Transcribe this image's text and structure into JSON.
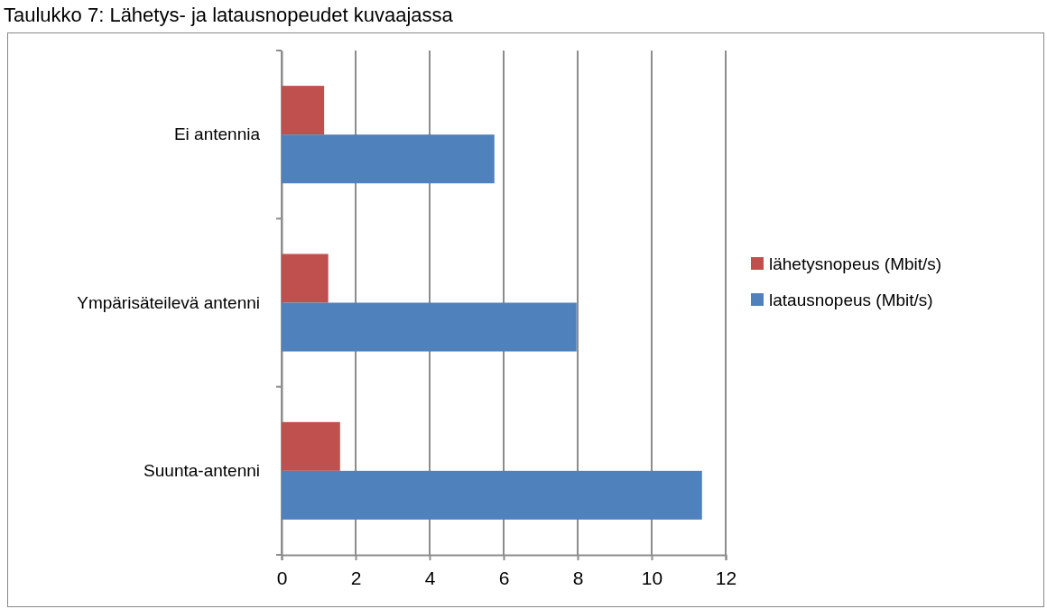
{
  "chart_data": {
    "type": "bar",
    "orientation": "horizontal",
    "title": "Taulukko 7: Lähetys- ja latausnopeudet kuvaajassa",
    "categories": [
      "Ei antennia",
      "Ympärisäteilevä antenni",
      "Suunta-antenni"
    ],
    "series": [
      {
        "name": "lähetysnopeus (Mbit/s)",
        "color": "#c0504d",
        "values": [
          1.15,
          1.26,
          1.58
        ]
      },
      {
        "name": "latausnopeus (Mbit/s)",
        "color": "#4f81bd",
        "values": [
          5.75,
          7.97,
          11.36
        ]
      }
    ],
    "xlim": [
      0,
      12
    ],
    "xticks": [
      0,
      2,
      4,
      6,
      8,
      10,
      12
    ],
    "grid": "x",
    "legend": "right"
  }
}
